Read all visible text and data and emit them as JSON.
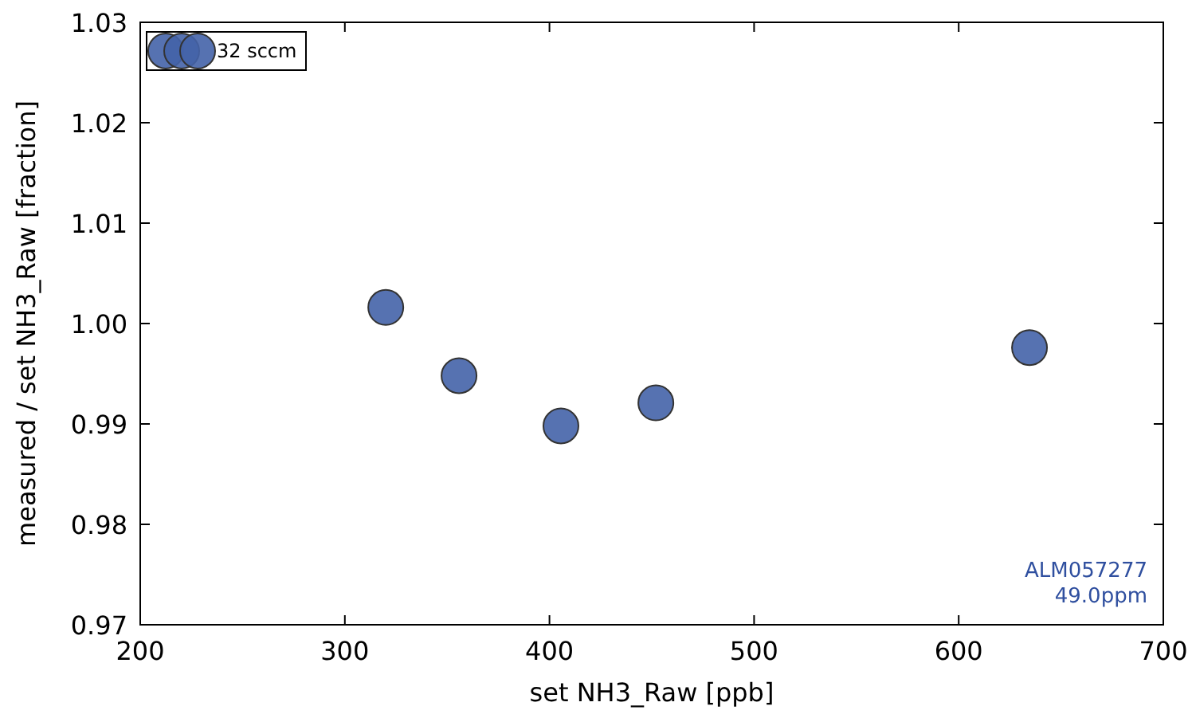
{
  "chart_data": {
    "type": "scatter",
    "xlabel": "set NH3_Raw [ppb]",
    "ylabel": "measured / set NH3_Raw [fraction]",
    "x": [
      320,
      355.8,
      405.6,
      452,
      634.6
    ],
    "series": [
      {
        "name": "32 sccm",
        "color": "#4463a8",
        "values": [
          1.0016,
          0.9948,
          0.9898,
          0.9921,
          0.9976
        ]
      }
    ],
    "xlim": [
      200,
      700
    ],
    "xticks": [
      200,
      300,
      400,
      500,
      600,
      700
    ],
    "ylim": [
      0.97,
      1.03
    ],
    "yticks": [
      {
        "value": 0.97,
        "label": "0.97"
      },
      {
        "value": 0.98,
        "label": "0.98"
      },
      {
        "value": 0.99,
        "label": "0.99"
      },
      {
        "value": 1.0,
        "label": "1.00"
      },
      {
        "value": 1.01,
        "label": "1.01"
      },
      {
        "value": 1.02,
        "label": "1.02"
      },
      {
        "value": 1.03,
        "label": "1.03"
      }
    ],
    "annotations": [
      "ALM057277",
      "49.0ppm"
    ],
    "legend": "top left",
    "marker": "circle",
    "grid": false
  }
}
